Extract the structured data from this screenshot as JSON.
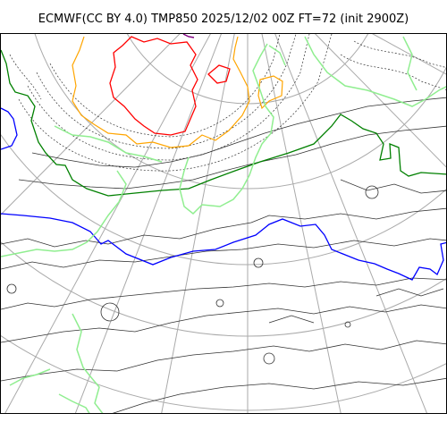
{
  "title": "ECMWF(CC BY 4.0) TMP850 2025/12/02 00Z FT=72 (init 2900Z)",
  "map": {
    "projection": "polar stereographic",
    "colors": {
      "graticule": "#aaaaaa",
      "coastline": "#90ee90",
      "isotherm": "#333333",
      "contour_blue": "#0000ff",
      "contour_green": "#008000",
      "contour_orange": "#ffa500",
      "contour_red": "#ff0000",
      "contour_purple": "#800080"
    },
    "highlighted_contours": [
      "blue",
      "green",
      "orange",
      "red",
      "purple"
    ]
  }
}
